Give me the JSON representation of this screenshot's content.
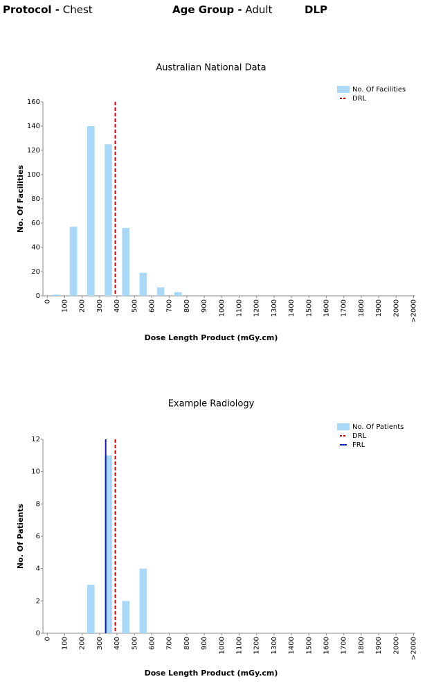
{
  "header": {
    "items": [
      {
        "label": "Protocol -",
        "value": "Chest"
      },
      {
        "label": "Age Group -",
        "value": "Adult"
      },
      {
        "label": "DLP"
      }
    ]
  },
  "chart_data": [
    {
      "type": "histogram",
      "title": "Australian National Data",
      "xlabel": "Dose Length Product (mGy.cm)",
      "ylabel": "No. Of Facilities",
      "bins": [
        0,
        100,
        200,
        300,
        400,
        500,
        600,
        700,
        800,
        900,
        1000,
        1100,
        1200,
        1300,
        1400,
        1500,
        1600,
        1700,
        1800,
        1900,
        2000,
        2100
      ],
      "series": [
        {
          "name": "No. Of Facilities",
          "color": "#aad8f8",
          "values": [
            1,
            57,
            140,
            125,
            56,
            19,
            7,
            3,
            0,
            0,
            0,
            0,
            0,
            0,
            0,
            0,
            0,
            0,
            0,
            0,
            0
          ]
        }
      ],
      "reference_lines": [
        {
          "name": "DRL",
          "value": 390,
          "color": "#d00000",
          "style": "dashed"
        }
      ],
      "xlim": [
        -25,
        2110
      ],
      "xticks": [
        0,
        100,
        200,
        300,
        400,
        500,
        600,
        700,
        800,
        900,
        1000,
        1100,
        1200,
        1300,
        1400,
        1500,
        1600,
        1700,
        1800,
        1900,
        2000,
        {
          "value": 2100,
          "label": ">2000"
        }
      ],
      "ylim": [
        0,
        160
      ],
      "yticks": [
        0,
        20,
        40,
        60,
        80,
        100,
        120,
        140,
        160
      ],
      "legend": "top-right"
    },
    {
      "type": "histogram",
      "title": "Example Radiology",
      "xlabel": "Dose Length Product (mGy.cm)",
      "ylabel": "No. Of Patients",
      "bins": [
        0,
        100,
        200,
        300,
        400,
        500,
        600,
        700,
        800,
        900,
        1000,
        1100,
        1200,
        1300,
        1400,
        1500,
        1600,
        1700,
        1800,
        1900,
        2000,
        2100
      ],
      "series": [
        {
          "name": "No. Of Patients",
          "color": "#aad8f8",
          "values": [
            0,
            0,
            3,
            11,
            2,
            4,
            0,
            0,
            0,
            0,
            0,
            0,
            0,
            0,
            0,
            0,
            0,
            0,
            0,
            0,
            0
          ]
        }
      ],
      "reference_lines": [
        {
          "name": "DRL",
          "value": 390,
          "color": "#d00000",
          "style": "dashed"
        },
        {
          "name": "FRL",
          "value": 335,
          "color": "#1020b0",
          "style": "solid"
        }
      ],
      "xlim": [
        -25,
        2110
      ],
      "xticks": [
        0,
        100,
        200,
        300,
        400,
        500,
        600,
        700,
        800,
        900,
        1000,
        1100,
        1200,
        1300,
        1400,
        1500,
        1600,
        1700,
        1800,
        1900,
        2000,
        {
          "value": 2100,
          "label": ">2000"
        }
      ],
      "ylim": [
        0,
        12
      ],
      "yticks": [
        0,
        2,
        4,
        6,
        8,
        10,
        12
      ],
      "legend": "top-right"
    }
  ]
}
